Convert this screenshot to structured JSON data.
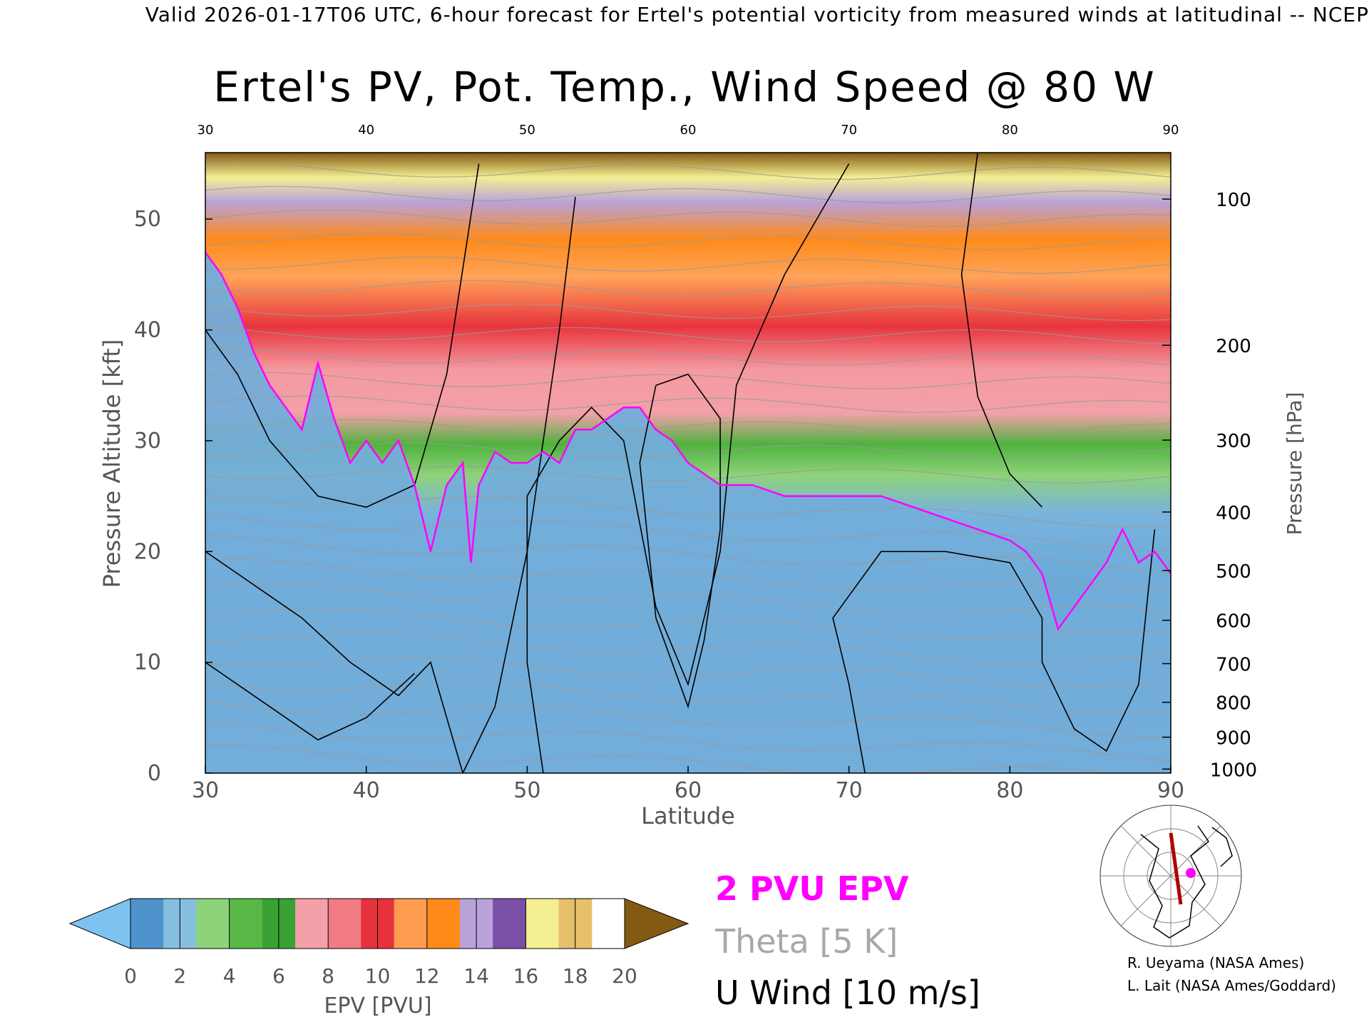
{
  "header": {
    "caption": "Valid 2026-01-17T06 UTC, 6-hour forecast for Ertel's potential vorticity from measured winds at latitudinal -- NCEP",
    "title": "Ertel's PV, Pot. Temp., Wind Speed @ 80 W"
  },
  "chart_data": {
    "type": "heatmap",
    "title": "Ertel's PV, Pot. Temp., Wind Speed @ 80 W",
    "xlabel": "Latitude",
    "ylabel": "Pressure Altitude [kft]",
    "y2label": "Pressure [hPa]",
    "x_ticks": [
      30,
      40,
      50,
      60,
      70,
      80,
      90
    ],
    "y_ticks": [
      0,
      10,
      20,
      30,
      40,
      50
    ],
    "pressure_ticks": [
      100,
      200,
      300,
      400,
      500,
      600,
      700,
      800,
      900,
      1000
    ],
    "xlim": [
      30,
      90
    ],
    "ylim": [
      0,
      56
    ],
    "colorbar": {
      "label": "EPV [PVU]",
      "ticks": [
        0,
        2,
        4,
        6,
        8,
        10,
        12,
        14,
        16,
        18,
        20
      ],
      "colors": [
        "#7cc4ef",
        "#4f93cc",
        "#86bfde",
        "#8ed27a",
        "#58b846",
        "#3aa233",
        "#f3a0a8",
        "#f07b83",
        "#e5323d",
        "#ff9c4f",
        "#ff8a1a",
        "#b9a2d8",
        "#7a4fa8",
        "#f3ef92",
        "#e6bf6a",
        "#845a12"
      ]
    },
    "pv2_line": [
      [
        30,
        47
      ],
      [
        31,
        45
      ],
      [
        32,
        42
      ],
      [
        33,
        38
      ],
      [
        34,
        35
      ],
      [
        35,
        33
      ],
      [
        36,
        31
      ],
      [
        37,
        37
      ],
      [
        38,
        32
      ],
      [
        39,
        28
      ],
      [
        40,
        30
      ],
      [
        41,
        28
      ],
      [
        42,
        30
      ],
      [
        43,
        26
      ],
      [
        44,
        20
      ],
      [
        45,
        26
      ],
      [
        46,
        28
      ],
      [
        46.5,
        19
      ],
      [
        47,
        26
      ],
      [
        48,
        29
      ],
      [
        49,
        28
      ],
      [
        50,
        28
      ],
      [
        51,
        29
      ],
      [
        52,
        28
      ],
      [
        53,
        31
      ],
      [
        54,
        31
      ],
      [
        55,
        32
      ],
      [
        56,
        33
      ],
      [
        57,
        33
      ],
      [
        58,
        31
      ],
      [
        59,
        30
      ],
      [
        60,
        28
      ],
      [
        61,
        27
      ],
      [
        62,
        26
      ],
      [
        64,
        26
      ],
      [
        66,
        25
      ],
      [
        68,
        25
      ],
      [
        70,
        25
      ],
      [
        72,
        25
      ],
      [
        74,
        24
      ],
      [
        76,
        23
      ],
      [
        78,
        22
      ],
      [
        80,
        21
      ],
      [
        81,
        20
      ],
      [
        82,
        18
      ],
      [
        83,
        13
      ],
      [
        84,
        15
      ],
      [
        85,
        17
      ],
      [
        86,
        19
      ],
      [
        87,
        22
      ],
      [
        88,
        19
      ],
      [
        89,
        20
      ],
      [
        90,
        18
      ]
    ],
    "legend": {
      "pv": "2 PVU EPV",
      "theta": "Theta [5 K]",
      "wind": "U Wind [10 m/s]"
    }
  },
  "credits": {
    "line1": "R. Ueyama (NASA Ames)",
    "line2": "L. Lait (NASA Ames/Goddard)"
  },
  "colors": {
    "pv_line": "#ff00ff",
    "theta": "#9a9a9a",
    "wind": "#000000"
  }
}
